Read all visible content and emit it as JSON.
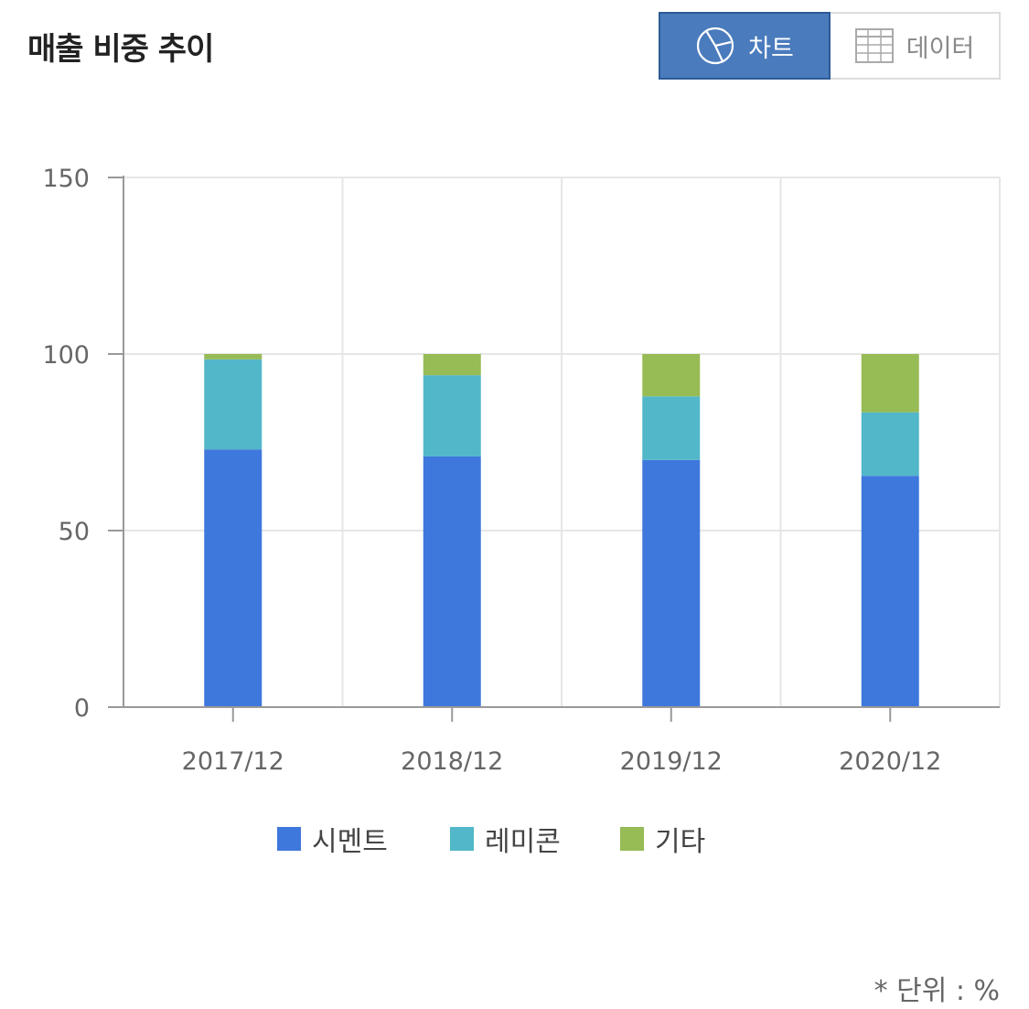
{
  "title": "매출 비중 추이",
  "toggle": {
    "chart_label": "차트",
    "data_label": "데이터",
    "chart_icon": "pie-chart-icon",
    "data_icon": "table-grid-icon",
    "active_color": "#4a7bbd"
  },
  "unit_note": "* 단위 : %",
  "chart_data": {
    "type": "bar",
    "stacked": true,
    "categories": [
      "2017/12",
      "2018/12",
      "2019/12",
      "2020/12"
    ],
    "series": [
      {
        "name": "시멘트",
        "color": "#3f78dc",
        "values": [
          73,
          71,
          70,
          65.5
        ]
      },
      {
        "name": "레미콘",
        "color": "#52b7c9",
        "values": [
          25.5,
          23,
          18,
          18
        ]
      },
      {
        "name": "기타",
        "color": "#97bb55",
        "values": [
          1.5,
          6,
          12,
          16.5
        ]
      }
    ],
    "yticks": [
      "0",
      "50",
      "100",
      "150"
    ],
    "ylim": [
      0,
      150
    ],
    "grid": true,
    "legend_position": "bottom"
  }
}
